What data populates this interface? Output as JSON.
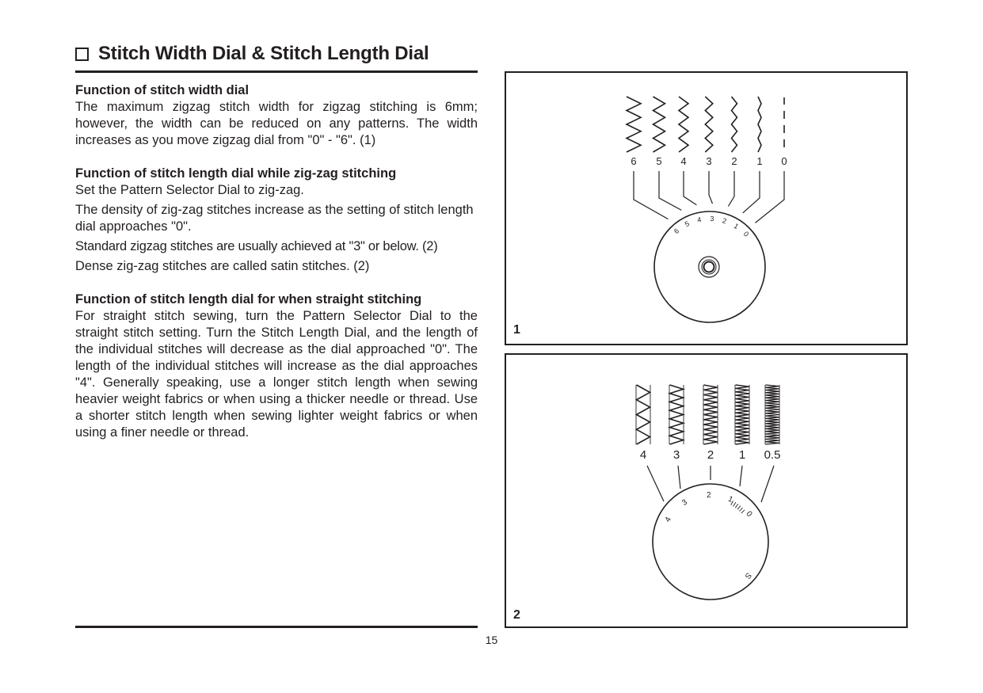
{
  "title": "Stitch Width Dial & Stitch Length Dial",
  "sections": [
    {
      "heading": "Function of stitch width dial",
      "paragraphs": [
        "The maximum zigzag stitch width for zigzag stitching is 6mm; however, the width can be reduced on any patterns. The width increases as you move zigzag dial from \"0\" - \"6\". (1)"
      ]
    },
    {
      "heading": "Function of stitch length dial while zig-zag stitching",
      "paragraphs": [
        "Set the Pattern Selector Dial to zig-zag.",
        "The density of zig-zag stitches increase as the setting of stitch length dial approaches \"0\".",
        "Standard zigzag stitches are usually achieved at \"3\" or below. (2)",
        "Dense zig-zag stitches are called satin stitches. (2)"
      ]
    },
    {
      "heading": "Function of stitch length dial for when straight stitching",
      "paragraphs": [
        "For straight stitch sewing, turn the Pattern Selector Dial to the straight stitch setting. Turn the Stitch Length Dial, and the length of the individual stitches will decrease as the dial approached \"0\". The length of the individual stitches will increase as the dial approaches \"4\". Generally speaking, use a longer stitch length when sewing heavier weight fabrics or when using a thicker needle or thread. Use a shorter stitch length when sewing lighter weight fabrics or when using a finer needle or thread."
      ]
    }
  ],
  "page_number": "15",
  "figure1": {
    "number": "1",
    "settings": [
      "6",
      "5",
      "4",
      "3",
      "2",
      "1",
      "0"
    ],
    "dial_labels": [
      "6",
      "5",
      "4",
      "3",
      "2",
      "1",
      "0"
    ]
  },
  "figure2": {
    "number": "2",
    "settings": [
      "4",
      "3",
      "2",
      "1",
      "0.5"
    ],
    "dial_labels": [
      "4",
      "3",
      "2",
      "1",
      "0",
      "S"
    ]
  }
}
